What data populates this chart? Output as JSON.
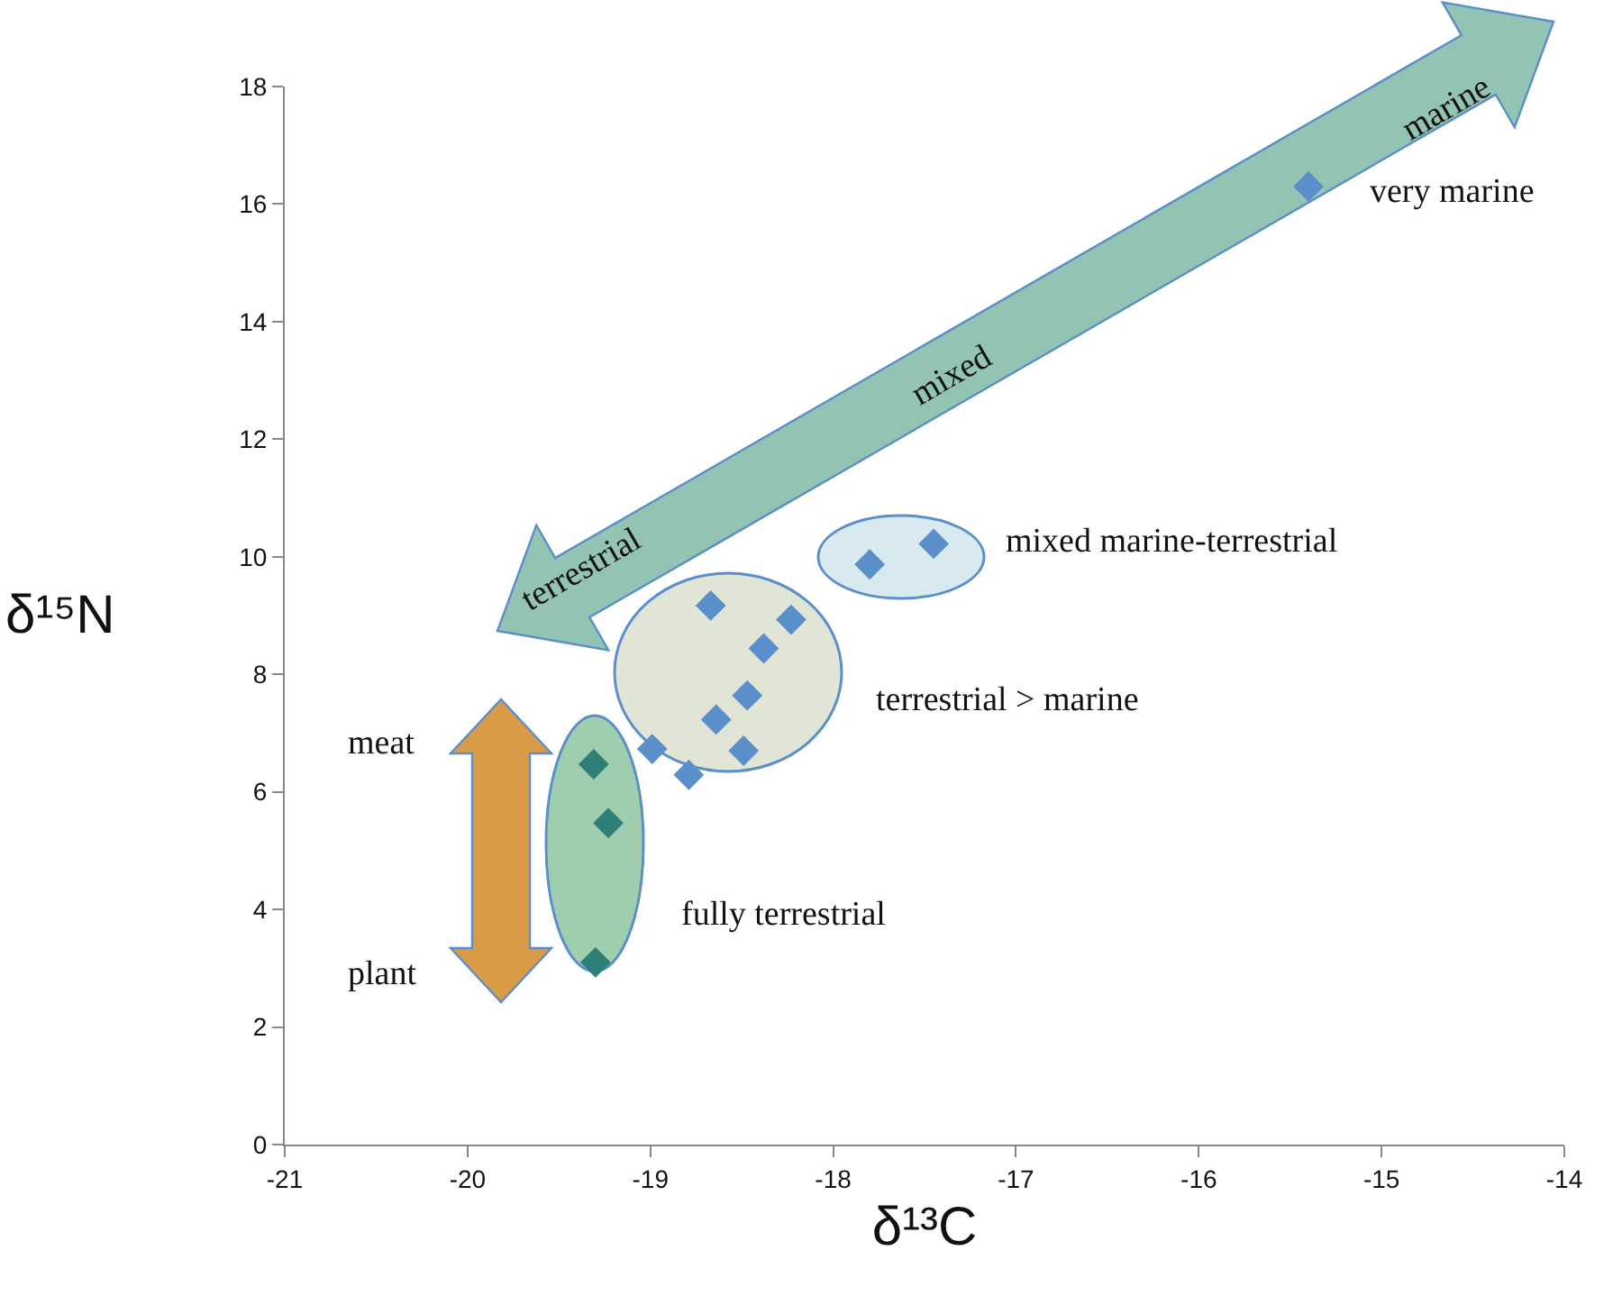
{
  "chart_data": {
    "type": "scatter",
    "xlabel": "δ¹³C",
    "ylabel": "δ¹⁵N",
    "xlim": [
      -21,
      -14
    ],
    "xticks": [
      -21,
      -20,
      -19,
      -18,
      -17,
      -16,
      -15,
      -14
    ],
    "ylim": [
      0,
      18
    ],
    "yticks": [
      0,
      2,
      4,
      6,
      8,
      10,
      12,
      14,
      16,
      18
    ],
    "grid": false,
    "marker": "diamond",
    "series": [
      {
        "x": [
          -15.4,
          -17.8,
          -17.45,
          -18.67,
          -18.23,
          -18.38,
          -18.47,
          -18.64,
          -18.99,
          -18.79,
          -18.49,
          -19.31,
          -19.23,
          -19.3
        ],
        "values": [
          16.3,
          9.87,
          10.22,
          9.17,
          8.93,
          8.44,
          7.64,
          7.23,
          6.73,
          6.29,
          6.7,
          6.47,
          5.47,
          3.1
        ],
        "colors": [
          "#5b8fc9",
          "#5b8fc9",
          "#5b8fc9",
          "#5b8fc9",
          "#5b8fc9",
          "#5b8fc9",
          "#5b8fc9",
          "#5b8fc9",
          "#5b8fc9",
          "#5b8fc9",
          "#5b8fc9",
          "#2e7f78",
          "#2e7f78",
          "#2e7f78"
        ]
      }
    ],
    "annotations": [
      "very marine",
      "mixed marine-terrestrial",
      "terrestrial > marine",
      "fully terrestrial",
      "terrestrial",
      "mixed",
      "marine",
      "meat",
      "plant"
    ]
  }
}
